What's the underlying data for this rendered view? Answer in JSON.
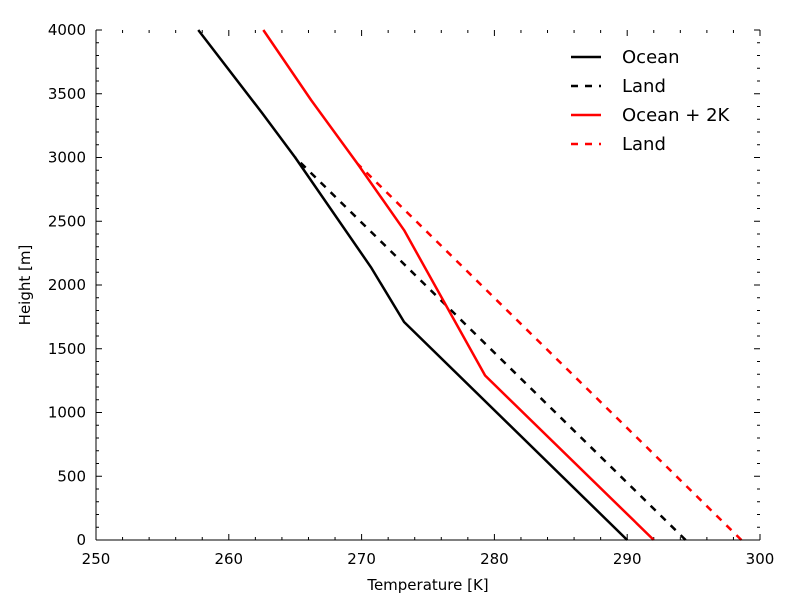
{
  "chart_data": {
    "type": "line",
    "title": "",
    "xlabel": "Temperature [K]",
    "ylabel": "Height [m]",
    "xlim": [
      250,
      300
    ],
    "ylim": [
      0,
      4000
    ],
    "xticks": [
      "250",
      "260",
      "270",
      "280",
      "290",
      "300"
    ],
    "yticks": [
      "0",
      "500",
      "1000",
      "1500",
      "2000",
      "2500",
      "3000",
      "3500",
      "4000"
    ],
    "grid": false,
    "legend_position": "top-right",
    "series": [
      {
        "name": "Ocean",
        "color": "#000000",
        "style": "solid",
        "points": [
          [
            290.0,
            0
          ],
          [
            273.2,
            1710
          ],
          [
            270.7,
            2140
          ],
          [
            265.0,
            3000
          ],
          [
            262.5,
            3350
          ],
          [
            257.7,
            4000
          ]
        ]
      },
      {
        "name": "Land",
        "color": "#000000",
        "style": "dashed",
        "points": [
          [
            294.4,
            0
          ],
          [
            265.0,
            3000
          ]
        ]
      },
      {
        "name": "Ocean + 2K",
        "color": "#ff0000",
        "style": "solid",
        "points": [
          [
            292.0,
            0
          ],
          [
            279.3,
            1290
          ],
          [
            273.2,
            2430
          ],
          [
            269.7,
            2950
          ],
          [
            266.2,
            3450
          ],
          [
            262.6,
            4000
          ]
        ]
      },
      {
        "name": "Land",
        "color": "#ff0000",
        "style": "dashed",
        "points": [
          [
            298.6,
            0
          ],
          [
            269.7,
            2950
          ]
        ]
      }
    ]
  }
}
